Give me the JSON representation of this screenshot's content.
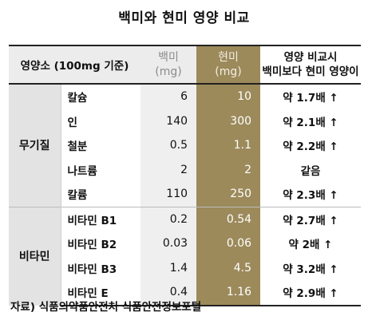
{
  "title": "백미와 현미 영양 비교",
  "header": {
    "nutrient": "영양소 (100mg 기준)",
    "white_rice": "백미",
    "white_unit": "(mg)",
    "brown_rice": "현미",
    "brown_unit": "(mg)",
    "comparison_line1": "영양 비교시",
    "comparison_line2": "백미보다 현미 영양이"
  },
  "groups": [
    {
      "name": "무기질",
      "rows": [
        {
          "item": "칼슘",
          "white": "6",
          "brown": "10",
          "comparison": "약 1.7배 ↑"
        },
        {
          "item": "인",
          "white": "140",
          "brown": "300",
          "comparison": "약 2.1배 ↑"
        },
        {
          "item": "철분",
          "white": "0.5",
          "brown": "1.1",
          "comparison": "약 2.2배 ↑"
        },
        {
          "item": "나트륨",
          "white": "2",
          "brown": "2",
          "comparison": "같음"
        },
        {
          "item": "칼륨",
          "white": "110",
          "brown": "250",
          "comparison": "약 2.3배 ↑"
        }
      ]
    },
    {
      "name": "비타민",
      "rows": [
        {
          "item": "비타민 B1",
          "white": "0.2",
          "brown": "0.54",
          "comparison": "약 2.7배 ↑"
        },
        {
          "item": "비타민 B2",
          "white": "0.03",
          "brown": "0.06",
          "comparison": "약 2배 ↑"
        },
        {
          "item": "비타민 B3",
          "white": "1.4",
          "brown": "4.5",
          "comparison": "약 3.2배 ↑"
        },
        {
          "item": "비타민 E",
          "white": "0.4",
          "brown": "1.16",
          "comparison": "약 2.9배 ↑"
        }
      ]
    }
  ],
  "source": "자료) 식품의약품안전처 식품안전정보포털",
  "colors": {
    "brown_column": "#9c8a5b",
    "white_column": "#efefef",
    "group_cell": "#e3e3e3"
  }
}
